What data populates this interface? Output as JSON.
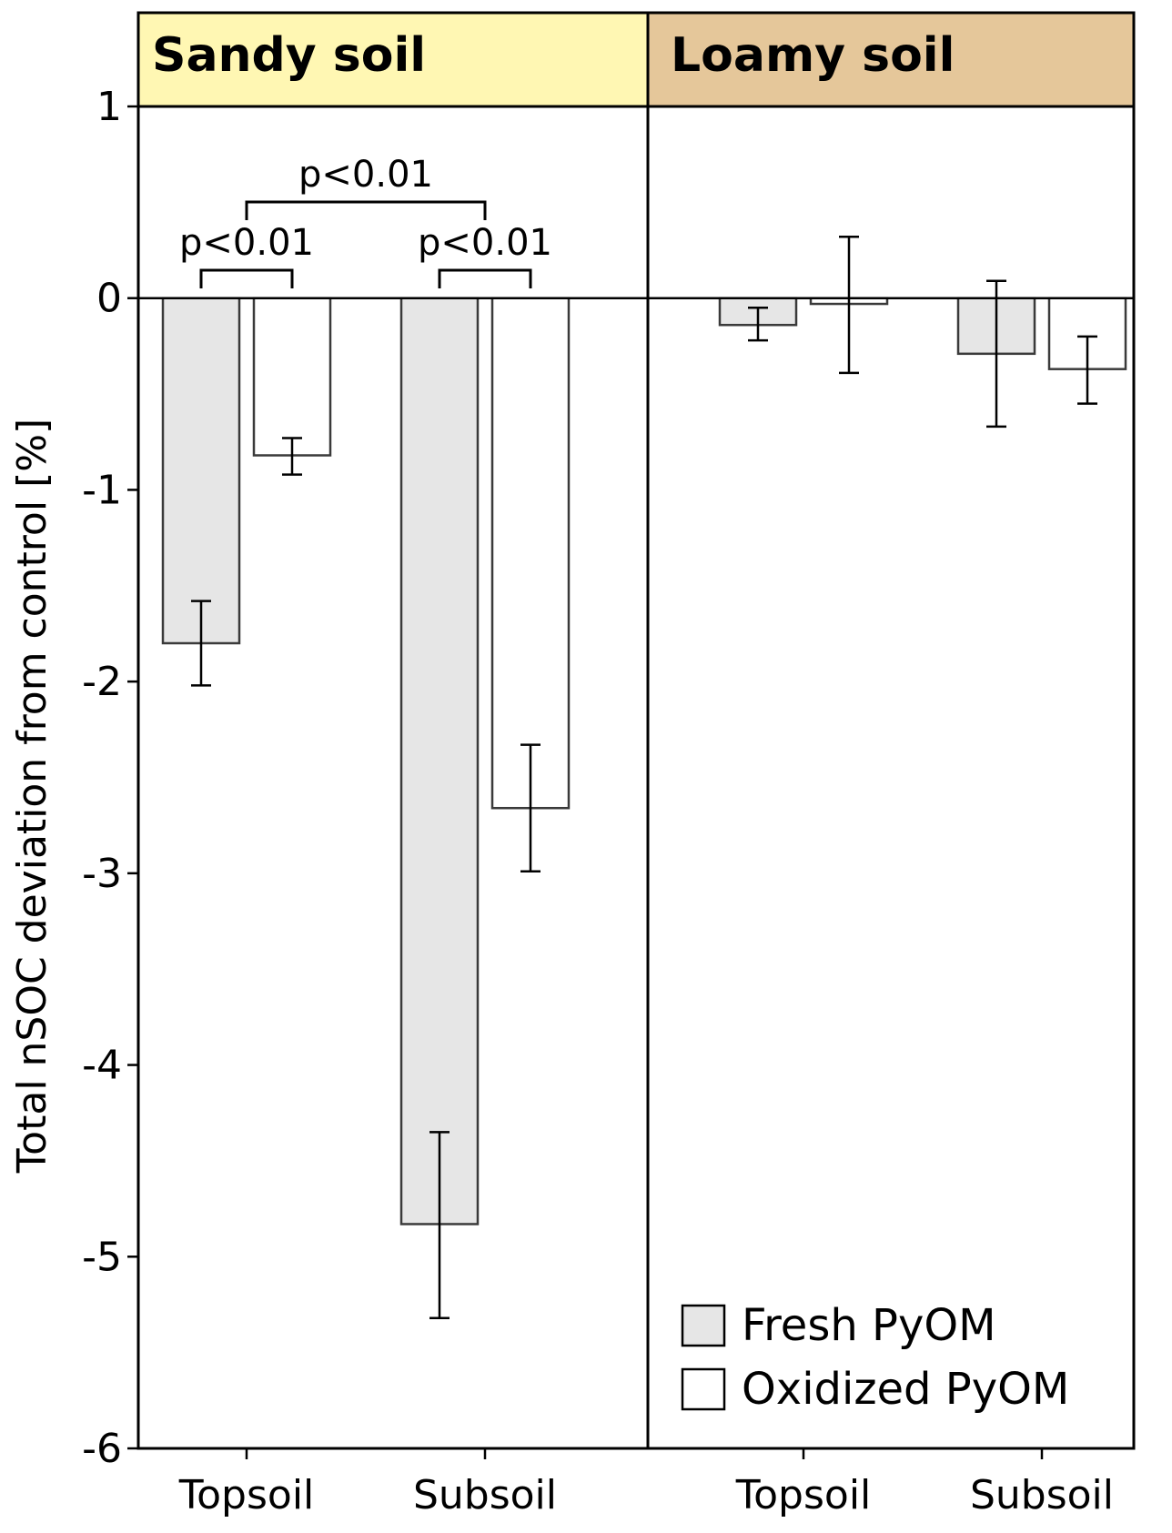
{
  "chart_data": {
    "type": "bar",
    "ylabel": "Total nSOC deviation from control [%]",
    "ylim": [
      -6,
      1
    ],
    "yticks": [
      "1",
      "0",
      "-1",
      "-2",
      "-3",
      "-4",
      "-5",
      "-6"
    ],
    "grid": false,
    "legend_placement": "bottom-right",
    "legend": [
      {
        "name": "Fresh PyOM",
        "color": "#e6e6e6"
      },
      {
        "name": "Oxidized PyOM",
        "color": "#ffffff"
      }
    ],
    "panels": [
      {
        "title": "Sandy soil",
        "strip_color": "#fff7b3",
        "categories": [
          "Topsoil",
          "Subsoil"
        ],
        "series": [
          {
            "name": "Fresh PyOM",
            "values": [
              -1.8,
              -4.83
            ],
            "error_low": [
              -2.02,
              -5.32
            ],
            "error_high": [
              -1.58,
              -4.35
            ]
          },
          {
            "name": "Oxidized PyOM",
            "values": [
              -0.82,
              -2.66
            ],
            "error_low": [
              -0.92,
              -2.99
            ],
            "error_high": [
              -0.73,
              -2.33
            ]
          }
        ],
        "annotations": [
          {
            "text": "p<0.01",
            "from": "Topsoil.Fresh PyOM",
            "to": "Topsoil.Oxidized PyOM"
          },
          {
            "text": "p<0.01",
            "from": "Subsoil.Fresh PyOM",
            "to": "Subsoil.Oxidized PyOM"
          },
          {
            "text": "p<0.01",
            "from": "Topsoil",
            "to": "Subsoil"
          }
        ]
      },
      {
        "title": "Loamy soil",
        "strip_color": "#e5c79a",
        "categories": [
          "Topsoil",
          "Subsoil"
        ],
        "series": [
          {
            "name": "Fresh PyOM",
            "values": [
              -0.14,
              -0.29
            ],
            "error_low": [
              -0.22,
              -0.67
            ],
            "error_high": [
              -0.05,
              0.09
            ]
          },
          {
            "name": "Oxidized PyOM",
            "values": [
              -0.03,
              -0.37
            ],
            "error_low": [
              -0.39,
              -0.55
            ],
            "error_high": [
              0.32,
              -0.2
            ]
          }
        ],
        "annotations": []
      }
    ]
  }
}
